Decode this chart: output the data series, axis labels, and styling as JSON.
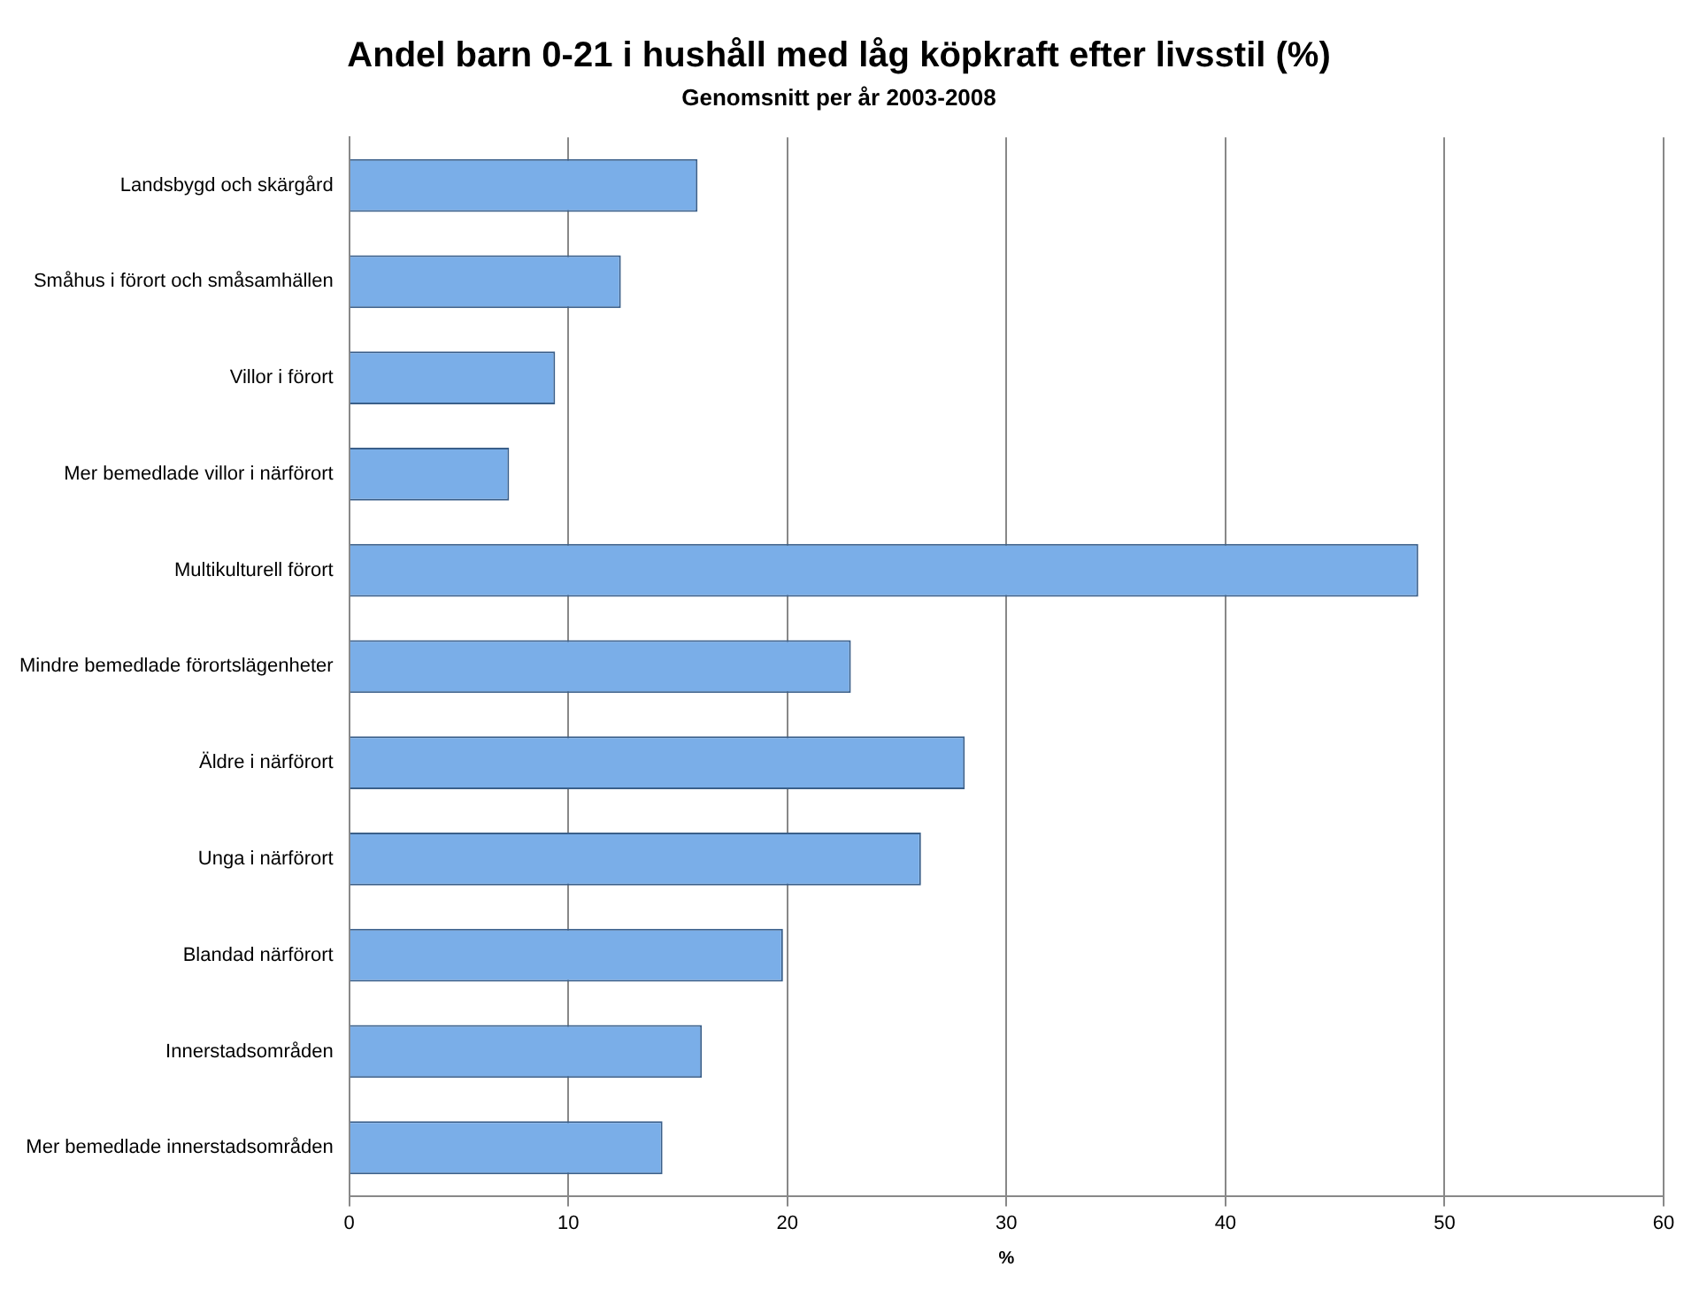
{
  "chart_data": {
    "type": "bar",
    "orientation": "horizontal",
    "title": "Andel barn 0-21 i hushåll med låg köpkraft efter livsstil (%)",
    "subtitle": "Genomsnitt per år 2003-2008",
    "xlabel": "%",
    "categories": [
      "Landsbygd och skärgård",
      "Småhus i förort och småsamhällen",
      "Villor i förort",
      "Mer bemedlade villor i närförort",
      "Multikulturell förort",
      "Mindre bemedlade förortslägenheter",
      "Äldre i närförort",
      "Unga i närförort",
      "Blandad närförort",
      "Innerstadsområden",
      "Mer bemedlade innerstadsområden"
    ],
    "values": [
      15.9,
      12.4,
      9.4,
      7.3,
      48.8,
      22.9,
      28.1,
      26.1,
      19.8,
      16.1,
      14.3
    ],
    "color": "#7aaee8",
    "xlim": [
      0,
      60
    ],
    "xticks": [
      0,
      10,
      20,
      30,
      40,
      50,
      60
    ],
    "grid": "x"
  }
}
